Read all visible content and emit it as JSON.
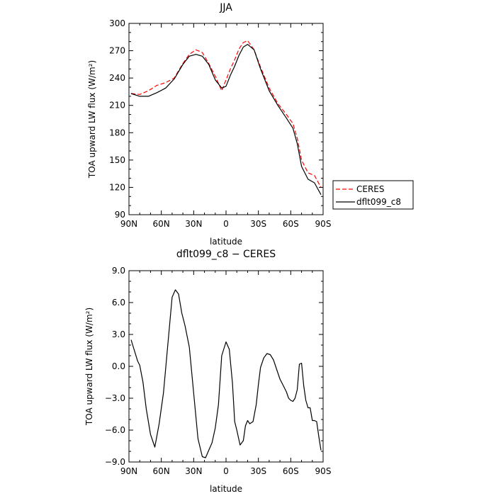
{
  "chart_data": [
    {
      "type": "line",
      "title": "JJA",
      "xlabel": "latitude",
      "ylabel": "TOA upward LW flux (W/m²)",
      "xlim": [
        90,
        -90
      ],
      "ylim": [
        90,
        300
      ],
      "x_tick_values": [
        90,
        60,
        30,
        0,
        -30,
        -60,
        -90
      ],
      "x_tick_labels": [
        "90N",
        "60N",
        "30N",
        "0",
        "30S",
        "60S",
        "90S"
      ],
      "y_tick_values": [
        90,
        120,
        150,
        180,
        210,
        240,
        270,
        300
      ],
      "y_tick_labels": [
        "90",
        "120",
        "150",
        "180",
        "210",
        "240",
        "270",
        "300"
      ],
      "grid": false,
      "legend_position": "right-bottom",
      "x": [
        88,
        80,
        72,
        64,
        56,
        48,
        40,
        34,
        28,
        22,
        16,
        10,
        4,
        0,
        -4,
        -8,
        -12,
        -16,
        -20,
        -26,
        -32,
        -40,
        -48,
        -56,
        -62,
        -66,
        -70,
        -76,
        -82,
        -88
      ],
      "series": [
        {
          "name": "CERES",
          "color": "#ff0000",
          "dash": "dashed",
          "values": [
            223,
            222,
            226,
            232,
            235,
            240,
            256,
            266,
            271,
            268,
            256,
            242,
            226,
            238,
            250,
            260,
            272,
            279,
            281,
            271,
            252,
            229,
            212,
            200,
            190,
            174,
            150,
            136,
            133,
            120
          ]
        },
        {
          "name": "dflt099_c8",
          "color": "#000000",
          "dash": "solid",
          "values": [
            223,
            220,
            220,
            224,
            229,
            239,
            255,
            264,
            266,
            264,
            255,
            238,
            229,
            231,
            243,
            253,
            265,
            274,
            277,
            271,
            250,
            226,
            210,
            196,
            185,
            168,
            143,
            129,
            125,
            112
          ]
        }
      ]
    },
    {
      "type": "line",
      "title": "dflt099_c8 − CERES",
      "xlabel": "latitude",
      "ylabel": "TOA upward LW flux (W/m²)",
      "xlim": [
        90,
        -90
      ],
      "ylim": [
        -9,
        9
      ],
      "x_tick_values": [
        90,
        60,
        30,
        0,
        -30,
        -60,
        -90
      ],
      "x_tick_labels": [
        "90N",
        "60N",
        "30N",
        "0",
        "30S",
        "60S",
        "90S"
      ],
      "y_tick_values": [
        -9,
        -6,
        -3,
        0,
        3,
        6,
        9
      ],
      "y_tick_labels": [
        "−9.0",
        "−6.0",
        "−3.0",
        "0.0",
        "3.0",
        "6.0",
        "9.0"
      ],
      "grid": false,
      "series": [
        {
          "color": "#000000",
          "dash": "solid",
          "x": [
            88,
            82,
            80,
            77,
            74,
            70,
            66,
            62,
            58,
            54,
            50,
            47,
            44,
            41,
            38,
            34,
            30,
            26,
            22,
            19,
            16,
            13,
            10,
            7,
            4,
            0,
            -3,
            -6,
            -8,
            -10,
            -13,
            -16,
            -18,
            -20,
            -22,
            -25,
            -28,
            -30,
            -32,
            -35,
            -38,
            -41,
            -44,
            -47,
            -50,
            -53,
            -56,
            -58,
            -60,
            -62,
            -64,
            -66,
            -68,
            -70,
            -72,
            -74,
            -76,
            -78,
            -80,
            -82,
            -84,
            -86,
            -88
          ],
          "values": [
            2.5,
            0.5,
            0.1,
            -1.5,
            -4.0,
            -6.4,
            -7.6,
            -5.4,
            -2.5,
            2.0,
            6.5,
            7.2,
            6.8,
            5.0,
            3.8,
            1.8,
            -2.5,
            -6.8,
            -8.5,
            -8.6,
            -7.9,
            -7.2,
            -5.8,
            -3.6,
            1.0,
            2.3,
            1.6,
            -1.6,
            -5.2,
            -6.0,
            -7.4,
            -7.0,
            -5.6,
            -5.1,
            -5.4,
            -5.2,
            -3.6,
            -1.7,
            -0.1,
            0.8,
            1.2,
            1.1,
            0.6,
            -0.3,
            -1.2,
            -1.8,
            -2.4,
            -3.0,
            -3.2,
            -3.3,
            -3.0,
            -2.2,
            0.2,
            0.3,
            -1.8,
            -3.2,
            -3.9,
            -3.9,
            -5.1,
            -5.1,
            -5.2,
            -6.6,
            -7.9
          ]
        }
      ]
    }
  ]
}
